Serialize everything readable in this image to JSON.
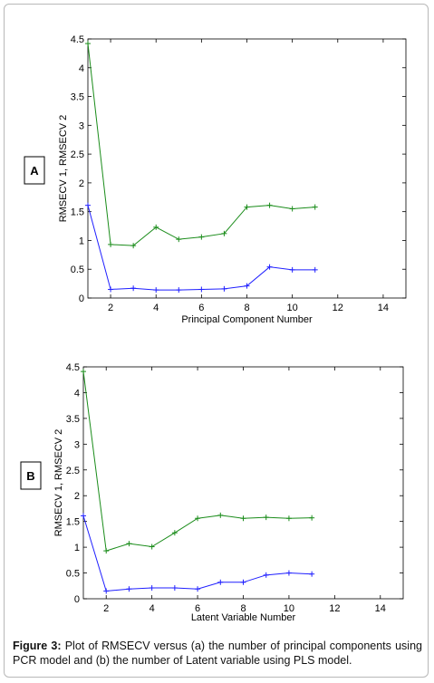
{
  "chart_data": [
    {
      "type": "line",
      "panel_label": "A",
      "xlabel": "Principal Component Number",
      "ylabel": "RMSECV 1, RMSECV 2",
      "xlim": [
        1,
        15
      ],
      "ylim": [
        0,
        4.5
      ],
      "xticks": [
        2,
        4,
        6,
        8,
        10,
        12,
        14
      ],
      "yticks": [
        0,
        0.5,
        1,
        1.5,
        2,
        2.5,
        3,
        3.5,
        4,
        4.5
      ],
      "grid": false,
      "x": [
        1,
        2,
        3,
        4,
        5,
        6,
        7,
        8,
        9,
        10,
        11
      ],
      "series": [
        {
          "color": "#1a8c1a",
          "values": [
            4.42,
            0.93,
            0.91,
            1.23,
            1.02,
            1.06,
            1.12,
            1.58,
            1.61,
            1.55,
            1.58
          ]
        },
        {
          "color": "#1f1fff",
          "values": [
            1.61,
            0.15,
            0.17,
            0.14,
            0.14,
            0.15,
            0.16,
            0.21,
            0.54,
            0.49,
            0.49
          ]
        }
      ]
    },
    {
      "type": "line",
      "panel_label": "B",
      "xlabel": "Latent Variable Number",
      "ylabel": "RMSECV 1, RMSECV 2",
      "xlim": [
        1,
        15
      ],
      "ylim": [
        0,
        4.5
      ],
      "xticks": [
        2,
        4,
        6,
        8,
        10,
        12,
        14
      ],
      "yticks": [
        0,
        0.5,
        1,
        1.5,
        2,
        2.5,
        3,
        3.5,
        4,
        4.5
      ],
      "grid": false,
      "x": [
        1,
        2,
        3,
        4,
        5,
        6,
        7,
        8,
        9,
        10,
        11
      ],
      "series": [
        {
          "color": "#1a8c1a",
          "values": [
            4.41,
            0.93,
            1.07,
            1.01,
            1.28,
            1.56,
            1.62,
            1.56,
            1.58,
            1.56,
            1.57
          ]
        },
        {
          "color": "#1f1fff",
          "values": [
            1.61,
            0.15,
            0.19,
            0.21,
            0.21,
            0.19,
            0.32,
            0.32,
            0.46,
            0.5,
            0.48
          ]
        }
      ]
    }
  ],
  "caption": {
    "label": "Figure 3:",
    "text": " Plot of RMSECV versus (a) the number of principal components using PCR model and (b) the number of Latent variable using PLS model."
  }
}
